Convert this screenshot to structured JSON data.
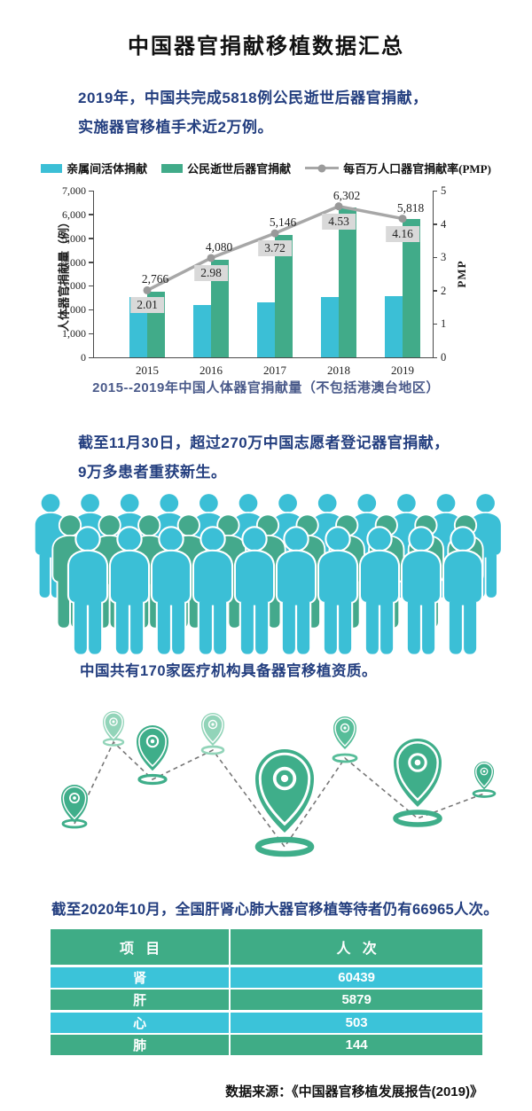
{
  "title": "中国器官捐献移植数据汇总",
  "intro": {
    "line1": "2019年，中国共完成5818例公民逝世后器官捐献，",
    "line2": "实施器官移植手术近2万例。"
  },
  "chart_data": {
    "type": "bar+line",
    "categories": [
      "2015",
      "2016",
      "2017",
      "2018",
      "2019"
    ],
    "series": [
      {
        "name": "亲属间活体捐献",
        "type": "bar",
        "axis": "left",
        "color": "#3bbfd6",
        "values": [
          2530,
          2180,
          2300,
          2520,
          2580
        ]
      },
      {
        "name": "公民逝世后器官捐献",
        "type": "bar",
        "axis": "left",
        "color": "#41ab89",
        "values": [
          2766,
          4080,
          5146,
          6302,
          5818
        ],
        "labels": [
          "2,766",
          "4,080",
          "5,146",
          "6,302",
          "5,818"
        ]
      },
      {
        "name": "每百万人口器官捐献率(PMP)",
        "type": "line",
        "axis": "right",
        "color": "#a7a7a7",
        "marker_color": "#999999",
        "values": [
          2.01,
          2.98,
          3.72,
          4.53,
          4.16
        ],
        "labels": [
          "2.01",
          "2.98",
          "3.72",
          "4.53",
          "4.16"
        ]
      }
    ],
    "left_axis": {
      "label": "人体器官捐献量（例）",
      "max": 7000,
      "ticks": [
        "7,000",
        "6,000",
        "5,000",
        "4,000",
        "3,000",
        "2,000",
        "1,000",
        "0"
      ]
    },
    "right_axis": {
      "label": "PMP",
      "max": 5,
      "ticks": [
        "5",
        "4",
        "3",
        "2",
        "1",
        "0"
      ]
    },
    "caption": "2015--2019年中国人体器官捐献量（不包括港澳台地区）",
    "legend_position": "top",
    "grid": false
  },
  "registry": {
    "line1": "截至11月30日，超过270万中国志愿者登记器官捐献，",
    "line2": "9万多患者重获新生。"
  },
  "crowd": {
    "rows": [
      {
        "color": "#3bbfd6",
        "count": 12
      },
      {
        "color": "#44a98c",
        "count": 11
      },
      {
        "color": "#3bbfd6",
        "count": 10
      }
    ]
  },
  "hospitals_text": "中国共有170家医疗机构具备器官移植资质。",
  "pins": {
    "count": 8,
    "main_color": "#3fae8a",
    "mid_color": "#57bd99",
    "light_color": "#92d4b9",
    "dash_color": "#777777"
  },
  "waiting_text": "截至2020年10月，全国肝肾心肺大器官移植等待者仍有66965人次。",
  "table": {
    "header_color": "#3fac86",
    "row_color_a": "#3bc3d9",
    "row_color_b": "#3fac86",
    "headers": [
      "项   目",
      "人   次"
    ],
    "rows": [
      [
        "肾",
        "60439"
      ],
      [
        "肝",
        "5879"
      ],
      [
        "心",
        "503"
      ],
      [
        "肺",
        "144"
      ]
    ]
  },
  "source": "数据来源：《中国器官移植发展报告(2019)》"
}
